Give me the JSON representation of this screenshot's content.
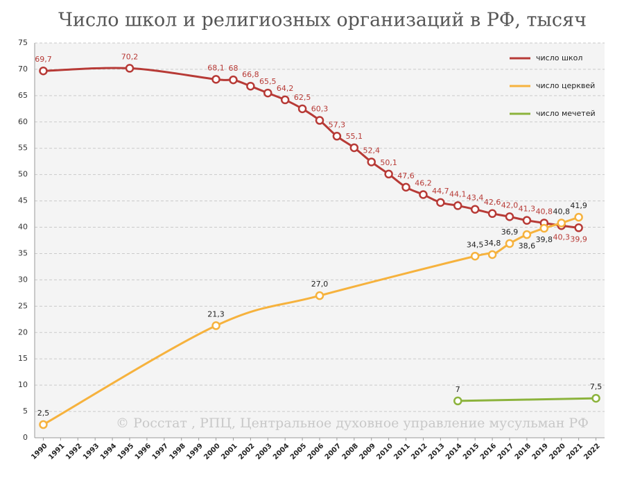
{
  "chart_data": {
    "type": "line",
    "title": "Число школ и религиозных организаций в РФ, тысяч",
    "annotation": "© Росстат , РПЦ, Центральное духовное управление мусульман РФ",
    "xlim": [
      1989.5,
      2022.5
    ],
    "xticks": [
      1990,
      1991,
      1992,
      1993,
      1994,
      1995,
      1996,
      1997,
      1998,
      1999,
      2000,
      2001,
      2002,
      2003,
      2004,
      2005,
      2006,
      2007,
      2008,
      2009,
      2010,
      2011,
      2012,
      2013,
      2014,
      2015,
      2016,
      2017,
      2018,
      2019,
      2020,
      2021,
      2022
    ],
    "ylim": [
      0,
      75
    ],
    "yticks": [
      0,
      5,
      10,
      15,
      20,
      25,
      30,
      35,
      40,
      45,
      50,
      55,
      60,
      65,
      70,
      75
    ],
    "grid": true,
    "legend": "top-right",
    "series": [
      {
        "name": "число школ",
        "color": "#b73a36",
        "x": [
          1990,
          1995,
          2000,
          2001,
          2002,
          2003,
          2004,
          2005,
          2006,
          2007,
          2008,
          2009,
          2010,
          2011,
          2012,
          2013,
          2014,
          2015,
          2016,
          2017,
          2018,
          2019,
          2020,
          2021
        ],
        "values": [
          69.7,
          70.2,
          68.1,
          68,
          66.8,
          65.5,
          64.2,
          62.5,
          60.3,
          57.3,
          55.1,
          52.4,
          50.1,
          47.6,
          46.2,
          44.7,
          44.1,
          43.4,
          42.6,
          42.0,
          41.3,
          40.8,
          40.3,
          39.9
        ],
        "value_labels": [
          "69,7",
          "70,2",
          "68,1",
          "68",
          "66,8",
          "65,5",
          "64,2",
          "62,5",
          "60,3",
          "57,3",
          "55,1",
          "52,4",
          "50,1",
          "47,6",
          "46,2",
          "44,7",
          "44,1",
          "43,4",
          "42,6",
          "42,0",
          "41,3",
          "40,8",
          "40,3",
          "39,9"
        ]
      },
      {
        "name": "число церквей",
        "color": "#f6b23d",
        "x": [
          1990,
          2000,
          2006,
          2015,
          2016,
          2017,
          2018,
          2019,
          2020,
          2021
        ],
        "values": [
          2.5,
          21.3,
          27.0,
          34.5,
          34.8,
          36.9,
          38.6,
          39.8,
          40.8,
          41.9
        ],
        "value_labels": [
          "2,5",
          "21,3",
          "27,0",
          "34,5",
          "34,8",
          "36,9",
          "38,6",
          "39,8",
          "40,8",
          "41,9"
        ]
      },
      {
        "name": "число мечетей",
        "color": "#8cb33c",
        "x": [
          2014,
          2022
        ],
        "values": [
          7,
          7.5
        ],
        "value_labels": [
          "7",
          "7,5"
        ]
      }
    ]
  }
}
